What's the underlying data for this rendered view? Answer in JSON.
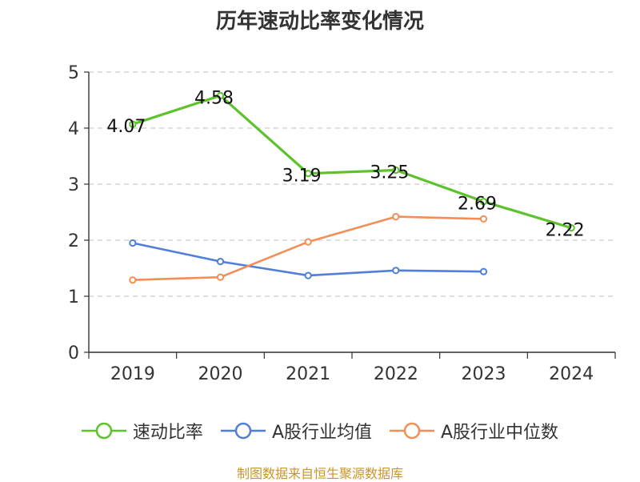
{
  "chart_data": {
    "type": "line",
    "title": "历年速动比率变化情况",
    "categories": [
      "2019",
      "2020",
      "2021",
      "2022",
      "2023",
      "2024"
    ],
    "ylim": [
      0,
      5
    ],
    "y_ticks": [
      0,
      1,
      2,
      3,
      4,
      5
    ],
    "grid": true,
    "legend_position": "bottom",
    "series": [
      {
        "name": "速动比率",
        "color": "#5ec22c",
        "values": [
          4.07,
          4.58,
          3.19,
          3.25,
          2.69,
          2.22
        ],
        "labels": [
          "4.07",
          "4.58",
          "3.19",
          "3.25",
          "2.69",
          "2.22"
        ]
      },
      {
        "name": "A股行业均值",
        "color": "#4f7fd9",
        "values": [
          1.95,
          1.62,
          1.37,
          1.46,
          1.44,
          null
        ]
      },
      {
        "name": "A股行业中位数",
        "color": "#f28e57",
        "values": [
          1.29,
          1.34,
          1.97,
          2.42,
          2.38,
          null
        ]
      }
    ]
  },
  "source": "制图数据来自恒生聚源数据库"
}
